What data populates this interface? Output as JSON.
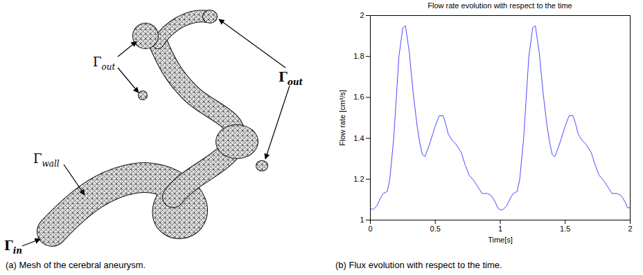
{
  "chart_data": {
    "type": "line",
    "title": "Flow rate evolution with respect to the time",
    "x_label": "Time[s]",
    "y_label": "Flow rate [cm³/s]",
    "x": [
      0,
      0.02,
      0.05,
      0.08,
      0.1,
      0.13,
      0.15,
      0.18,
      0.2,
      0.22,
      0.25,
      0.27,
      0.3,
      0.33,
      0.36,
      0.38,
      0.4,
      0.42,
      0.45,
      0.5,
      0.53,
      0.56,
      0.58,
      0.6,
      0.63,
      0.66,
      0.7,
      0.73,
      0.76,
      0.8,
      0.83,
      0.86,
      0.88,
      0.9,
      0.93,
      0.96,
      0.98,
      1.0,
      1.02,
      1.05,
      1.08,
      1.1,
      1.13,
      1.15,
      1.18,
      1.2,
      1.22,
      1.25,
      1.27,
      1.3,
      1.33,
      1.36,
      1.38,
      1.4,
      1.42,
      1.45,
      1.5,
      1.53,
      1.56,
      1.58,
      1.6,
      1.63,
      1.66,
      1.7,
      1.73,
      1.76,
      1.8,
      1.83,
      1.86,
      1.88,
      1.9,
      1.93,
      1.96,
      1.98,
      2.0
    ],
    "values": [
      1.06,
      1.05,
      1.07,
      1.11,
      1.13,
      1.14,
      1.2,
      1.4,
      1.6,
      1.8,
      1.94,
      1.95,
      1.82,
      1.62,
      1.46,
      1.38,
      1.32,
      1.31,
      1.36,
      1.46,
      1.51,
      1.51,
      1.47,
      1.42,
      1.39,
      1.37,
      1.33,
      1.27,
      1.22,
      1.19,
      1.16,
      1.13,
      1.13,
      1.13,
      1.12,
      1.09,
      1.06,
      1.05,
      1.05,
      1.07,
      1.11,
      1.13,
      1.14,
      1.2,
      1.4,
      1.6,
      1.8,
      1.94,
      1.95,
      1.82,
      1.62,
      1.46,
      1.38,
      1.32,
      1.31,
      1.36,
      1.46,
      1.51,
      1.51,
      1.47,
      1.42,
      1.39,
      1.37,
      1.33,
      1.27,
      1.22,
      1.19,
      1.16,
      1.13,
      1.13,
      1.13,
      1.12,
      1.09,
      1.06,
      1.06
    ],
    "color": "#4a4aff",
    "xlim": [
      0,
      2
    ],
    "xticks": [
      0,
      0.5,
      1,
      1.5,
      2
    ],
    "ylim": [
      1,
      2
    ],
    "yticks": [
      1,
      1.2,
      1.4,
      1.6,
      1.8,
      2
    ],
    "grid": false
  },
  "figure": {
    "panel_a": {
      "caption": "(a) Mesh of the cerebral aneurysm.",
      "labels": [
        {
          "base": "Γ",
          "sub": "out",
          "bold": false
        },
        {
          "base": "Γ",
          "sub": "wall",
          "bold": false
        },
        {
          "base": "Γ",
          "sub": "in",
          "bold": true
        },
        {
          "base": "Γ",
          "sub": "out",
          "bold": true
        }
      ]
    },
    "panel_b": {
      "caption": "(b) Flux evolution with respect to the time."
    }
  }
}
